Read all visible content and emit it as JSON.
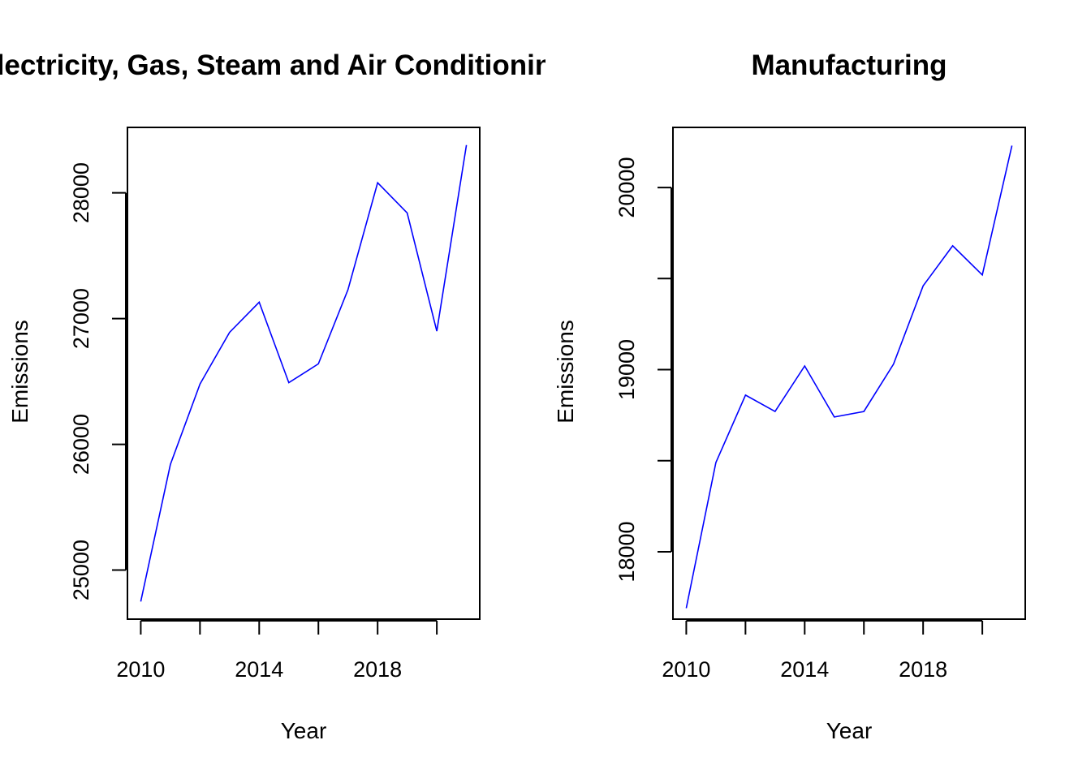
{
  "chart_data": [
    {
      "type": "line",
      "title": "Electricity, Gas, Steam and Air Conditioning",
      "xlabel": "Year",
      "ylabel": "Emissions",
      "x": [
        2010,
        2011,
        2012,
        2013,
        2014,
        2015,
        2016,
        2017,
        2018,
        2019,
        2020,
        2021
      ],
      "values": [
        24750,
        25840,
        26480,
        26890,
        27130,
        26490,
        26640,
        27230,
        28080,
        27840,
        26900,
        28380
      ],
      "xlim": [
        2009.55,
        2021.45
      ],
      "ylim": [
        24610,
        28520
      ],
      "xticks": [
        2010,
        2012,
        2014,
        2016,
        2018,
        2020
      ],
      "xtick_labels": [
        "2010",
        "",
        "2014",
        "",
        "2018",
        ""
      ],
      "yticks": [
        25000,
        26000,
        27000,
        28000
      ],
      "ytick_labels": [
        "25000",
        "26000",
        "27000",
        "28000"
      ],
      "line_color": "#0000ff",
      "grid": false
    },
    {
      "type": "line",
      "title": "Manufacturing",
      "xlabel": "Year",
      "ylabel": "Emissions",
      "x": [
        2010,
        2011,
        2012,
        2013,
        2014,
        2015,
        2016,
        2017,
        2018,
        2019,
        2020,
        2021
      ],
      "values": [
        17690,
        18490,
        18860,
        18770,
        19020,
        18740,
        18770,
        19030,
        19460,
        19680,
        19520,
        20230
      ],
      "xlim": [
        2009.55,
        2021.45
      ],
      "ylim": [
        17630,
        20330
      ],
      "xticks": [
        2010,
        2012,
        2014,
        2016,
        2018,
        2020
      ],
      "xtick_labels": [
        "2010",
        "",
        "2014",
        "",
        "2018",
        ""
      ],
      "yticks": [
        18000,
        18500,
        19000,
        19500,
        20000
      ],
      "ytick_labels": [
        "18000",
        "",
        "19000",
        "",
        "20000"
      ],
      "line_color": "#0000ff",
      "grid": false
    }
  ]
}
